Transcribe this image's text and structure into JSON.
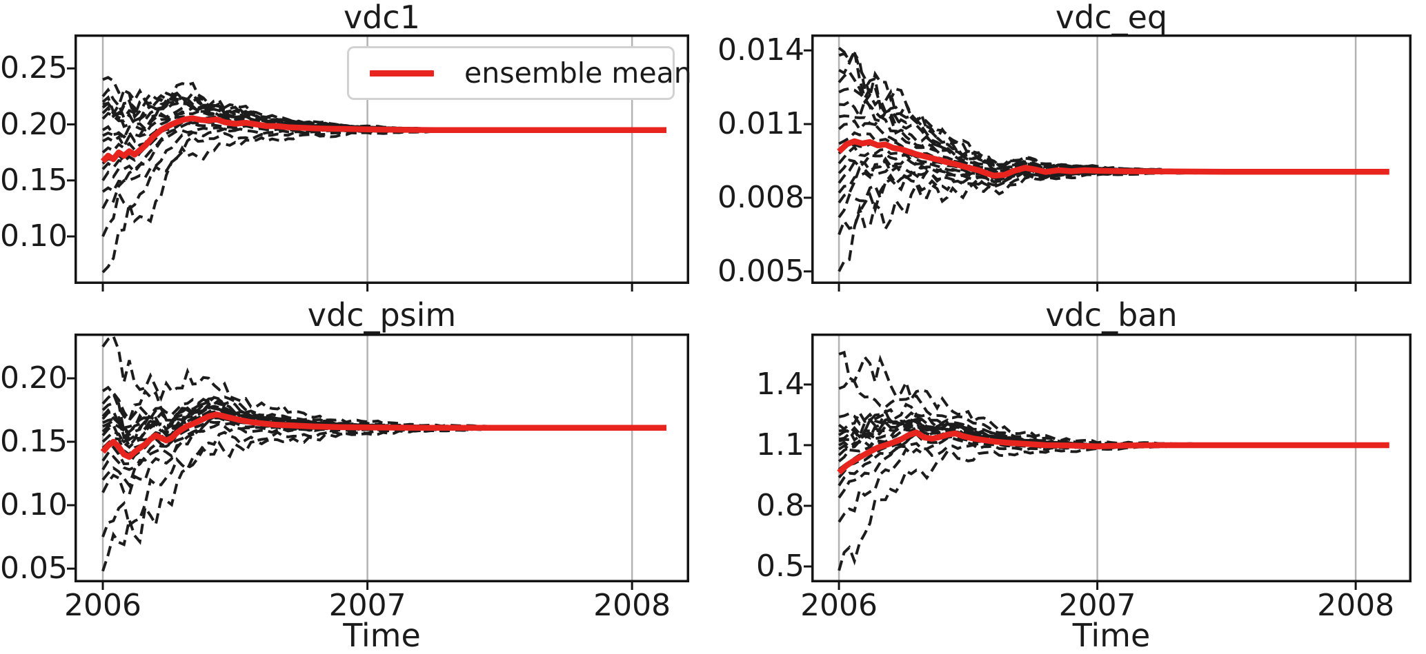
{
  "legend": {
    "label": "ensemble mean"
  },
  "style": {
    "mean_color": "#e8241f",
    "member_color": "#1c1c1c",
    "grid_color": "#b3b3b3",
    "spine_color": "#141414",
    "tick_color": "#141414",
    "background": "#ffffff"
  },
  "x_axis": {
    "label": "Time",
    "xlim": [
      2005.893,
      2008.216
    ],
    "ticks": [
      2006,
      2007,
      2008
    ],
    "tick_labels": [
      "2006",
      "2007",
      "2008"
    ]
  },
  "chart_data": [
    {
      "type": "line",
      "title": "vdc1",
      "xlabel": "",
      "show_x_tick_labels": false,
      "has_legend": true,
      "xlim": [
        2005.893,
        2008.216
      ],
      "ylim": [
        0.0576,
        0.2803
      ],
      "yticks": [
        0.1,
        0.15,
        0.2,
        0.25
      ],
      "ytick_labels": [
        "0.10",
        "0.15",
        "0.20",
        "0.25"
      ],
      "xticks": [
        2006,
        2007,
        2008
      ],
      "converged_value": 0.195,
      "mean_series": {
        "x": [
          2006.0,
          2006.02,
          2006.04,
          2006.06,
          2006.08,
          2006.1,
          2006.12,
          2006.14,
          2006.16,
          2006.19,
          2006.22,
          2006.25,
          2006.28,
          2006.31,
          2006.34,
          2006.37,
          2006.4,
          2006.43,
          2006.46,
          2006.5,
          2006.54,
          2006.58,
          2006.62,
          2006.66,
          2006.7,
          2006.75,
          2006.8,
          2006.85,
          2006.9,
          2007.0,
          2007.1,
          2007.25,
          2007.5,
          2008.13
        ],
        "y": [
          0.167,
          0.172,
          0.169,
          0.175,
          0.172,
          0.176,
          0.173,
          0.177,
          0.181,
          0.189,
          0.195,
          0.199,
          0.202,
          0.2045,
          0.2055,
          0.204,
          0.2035,
          0.2045,
          0.202,
          0.2005,
          0.2015,
          0.2,
          0.1985,
          0.1985,
          0.1975,
          0.197,
          0.1965,
          0.1962,
          0.196,
          0.1955,
          0.1952,
          0.195,
          0.195,
          0.195
        ]
      },
      "members": {
        "count": 18,
        "style": "dashed",
        "converge_tau_years": 0.3,
        "seed": 7,
        "start_values": [
          0.225,
          0.24,
          0.215,
          0.22,
          0.21,
          0.205,
          0.218,
          0.195,
          0.19,
          0.185,
          0.175,
          0.165,
          0.16,
          0.15,
          0.14,
          0.125,
          0.1,
          0.068
        ]
      }
    },
    {
      "type": "line",
      "title": "vdc_eq",
      "xlabel": "",
      "show_x_tick_labels": false,
      "has_legend": false,
      "xlim": [
        2005.893,
        2008.216
      ],
      "ylim": [
        0.00449,
        0.01465
      ],
      "yticks": [
        0.005,
        0.008,
        0.011,
        0.014
      ],
      "ytick_labels": [
        "0.005",
        "0.008",
        "0.011",
        "0.014"
      ],
      "xticks": [
        2006,
        2007,
        2008
      ],
      "converged_value": 0.00906,
      "mean_series": {
        "x": [
          2006.0,
          2006.03,
          2006.06,
          2006.09,
          2006.12,
          2006.15,
          2006.18,
          2006.21,
          2006.24,
          2006.27,
          2006.3,
          2006.33,
          2006.36,
          2006.39,
          2006.42,
          2006.45,
          2006.48,
          2006.51,
          2006.54,
          2006.57,
          2006.6,
          2006.64,
          2006.68,
          2006.72,
          2006.76,
          2006.8,
          2006.85,
          2006.9,
          2006.95,
          2007.0,
          2007.1,
          2007.25,
          2007.5,
          2008.13
        ],
        "y": [
          0.00988,
          0.01018,
          0.0103,
          0.01021,
          0.01027,
          0.01013,
          0.01017,
          0.01003,
          0.00998,
          0.00988,
          0.00977,
          0.00969,
          0.00961,
          0.00953,
          0.00944,
          0.00937,
          0.00928,
          0.0092,
          0.00912,
          0.009,
          0.0089,
          0.00893,
          0.0091,
          0.00922,
          0.00915,
          0.00905,
          0.00912,
          0.00908,
          0.00912,
          0.0091,
          0.00908,
          0.00907,
          0.00906,
          0.00906
        ]
      },
      "members": {
        "count": 18,
        "style": "dashed",
        "converge_tau_years": 0.3,
        "seed": 13,
        "start_values": [
          0.0141,
          0.0138,
          0.0132,
          0.0127,
          0.0123,
          0.0118,
          0.0113,
          0.0108,
          0.0102,
          0.0098,
          0.0094,
          0.009,
          0.0086,
          0.0082,
          0.0078,
          0.0072,
          0.0065,
          0.005
        ]
      }
    },
    {
      "type": "line",
      "title": "vdc_psim",
      "xlabel": "Time",
      "show_x_tick_labels": true,
      "has_legend": false,
      "xlim": [
        2005.893,
        2008.216
      ],
      "ylim": [
        0.0392,
        0.2353
      ],
      "yticks": [
        0.05,
        0.1,
        0.15,
        0.2
      ],
      "ytick_labels": [
        "0.05",
        "0.10",
        "0.15",
        "0.20"
      ],
      "xticks": [
        2006,
        2007,
        2008
      ],
      "converged_value": 0.161,
      "mean_series": {
        "x": [
          2006.0,
          2006.02,
          2006.04,
          2006.06,
          2006.08,
          2006.1,
          2006.12,
          2006.14,
          2006.16,
          2006.18,
          2006.2,
          2006.22,
          2006.24,
          2006.26,
          2006.28,
          2006.3,
          2006.32,
          2006.34,
          2006.36,
          2006.38,
          2006.4,
          2006.43,
          2006.46,
          2006.49,
          2006.52,
          2006.56,
          2006.6,
          2006.65,
          2006.7,
          2006.8,
          2006.9,
          2007.0,
          2007.2,
          2007.5,
          2008.13
        ],
        "y": [
          0.142,
          0.147,
          0.15,
          0.146,
          0.14,
          0.138,
          0.142,
          0.145,
          0.148,
          0.152,
          0.155,
          0.153,
          0.151,
          0.153,
          0.157,
          0.16,
          0.1625,
          0.164,
          0.166,
          0.168,
          0.17,
          0.1715,
          0.17,
          0.1685,
          0.167,
          0.1655,
          0.1645,
          0.1635,
          0.163,
          0.162,
          0.1615,
          0.1613,
          0.161,
          0.161,
          0.161
        ]
      },
      "members": {
        "count": 18,
        "style": "dashed",
        "converge_tau_years": 0.34,
        "seed": 21,
        "start_values": [
          0.225,
          0.19,
          0.18,
          0.175,
          0.17,
          0.168,
          0.165,
          0.162,
          0.158,
          0.155,
          0.15,
          0.145,
          0.135,
          0.128,
          0.12,
          0.11,
          0.075,
          0.048
        ]
      }
    },
    {
      "type": "line",
      "title": "vdc_ban",
      "xlabel": "Time",
      "show_x_tick_labels": true,
      "has_legend": false,
      "xlim": [
        2005.893,
        2008.216
      ],
      "ylim": [
        0.4216,
        1.652
      ],
      "yticks": [
        0.5,
        0.8,
        1.1,
        1.4
      ],
      "ytick_labels": [
        "0.5",
        "0.8",
        "1.1",
        "1.4"
      ],
      "xticks": [
        2006,
        2007,
        2008
      ],
      "converged_value": 1.1,
      "mean_series": {
        "x": [
          2006.0,
          2006.03,
          2006.06,
          2006.09,
          2006.12,
          2006.15,
          2006.18,
          2006.21,
          2006.24,
          2006.27,
          2006.3,
          2006.33,
          2006.36,
          2006.39,
          2006.42,
          2006.45,
          2006.48,
          2006.52,
          2006.56,
          2006.6,
          2006.65,
          2006.7,
          2006.75,
          2006.8,
          2006.9,
          2007.0,
          2007.1,
          2007.25,
          2007.5,
          2008.13
        ],
        "y": [
          0.965,
          1.0,
          1.025,
          1.047,
          1.068,
          1.088,
          1.1,
          1.113,
          1.128,
          1.15,
          1.163,
          1.138,
          1.132,
          1.14,
          1.152,
          1.158,
          1.145,
          1.133,
          1.125,
          1.118,
          1.112,
          1.108,
          1.104,
          1.1,
          1.098,
          1.094,
          1.098,
          1.1,
          1.1,
          1.1
        ]
      },
      "members": {
        "count": 18,
        "style": "dashed",
        "converge_tau_years": 0.3,
        "seed": 29,
        "start_values": [
          1.55,
          1.38,
          1.24,
          1.2,
          1.17,
          1.15,
          1.13,
          1.12,
          1.1,
          1.08,
          1.05,
          1.02,
          0.98,
          0.94,
          0.9,
          0.84,
          0.72,
          0.48
        ]
      }
    }
  ]
}
